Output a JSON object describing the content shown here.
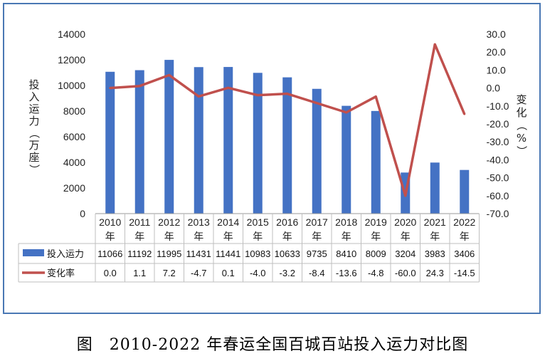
{
  "chart_data": {
    "type": "bar",
    "categories": [
      "2010\n年",
      "2011\n年",
      "2012\n年",
      "2013\n年",
      "2014\n年",
      "2015\n年",
      "2016\n年",
      "2017\n年",
      "2018\n年",
      "2019\n年",
      "2020\n年",
      "2021\n年",
      "2022\n年"
    ],
    "series": [
      {
        "name": "投入运力",
        "type": "bar",
        "axis": "left",
        "color": "#4472c4",
        "values": [
          11066,
          11192,
          11995,
          11431,
          11441,
          10983,
          10633,
          9735,
          8410,
          8009,
          3204,
          3983,
          3406
        ]
      },
      {
        "name": "变化率",
        "type": "line",
        "axis": "right",
        "color": "#c0504d",
        "values": [
          0.0,
          1.1,
          7.2,
          -4.7,
          0.1,
          -4.0,
          -3.2,
          -8.4,
          -13.6,
          -4.8,
          -60.0,
          24.3,
          -14.5
        ]
      }
    ],
    "table_values": {
      "bar": [
        "11066",
        "11192",
        "11995",
        "11431",
        "11441",
        "10983",
        "10633",
        "9735",
        "8410",
        "8009",
        "3204",
        "3983",
        "3406"
      ],
      "line": [
        "0.0",
        "1.1",
        "7.2",
        "-4.7",
        "0.1",
        "-4.0",
        "-3.2",
        "-8.4",
        "-13.6",
        "-4.8",
        "-60.0",
        "24.3",
        "-14.5"
      ]
    },
    "ylabel_left": "投入运力（万座）",
    "ylabel_right": "变化（%）",
    "ylim_left": [
      0,
      14000
    ],
    "ylim_right": [
      -70,
      30
    ],
    "yticks_left": [
      "14000",
      "12000",
      "10000",
      "8000",
      "6000",
      "4000",
      "2000",
      "0"
    ],
    "yticks_right": [
      "30.0",
      "20.0",
      "10.0",
      "0.0",
      "-10.0",
      "-20.0",
      "-30.0",
      "-40.0",
      "-50.0",
      "-60.0",
      "-70.0"
    ],
    "grid": false,
    "legend": "data-table"
  },
  "caption": "图　2010-2022 年春运全国百城百站投入运力对比图"
}
